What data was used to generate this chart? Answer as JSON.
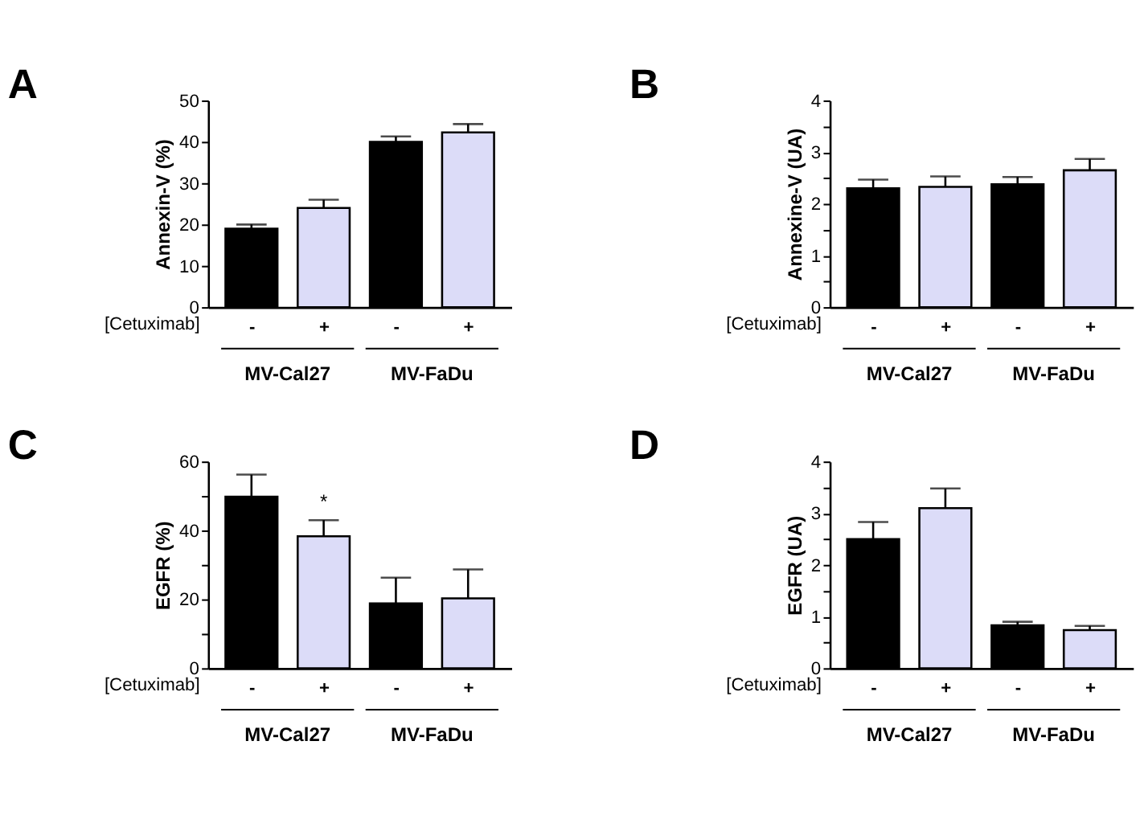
{
  "chart_data": [
    {
      "type": "bar",
      "title": "A",
      "ylabel": "Annexin-V (%)",
      "xlabel": "[Cetuximab]",
      "categories": [
        "-",
        "+",
        "-",
        "+"
      ],
      "values": [
        19,
        24,
        40,
        42.3
      ],
      "errors": [
        [
          19,
          20
        ],
        [
          24,
          26
        ],
        [
          40,
          41.3
        ],
        [
          42.3,
          44.3
        ]
      ],
      "colors": [
        "#000000",
        "#dcdcf8",
        "#000000",
        "#dcdcf8"
      ],
      "ylim": [
        0,
        50
      ],
      "yticks": [
        0,
        10,
        20,
        30,
        40,
        50
      ],
      "annotations": [
        "MV-Cal27",
        "MV-FaDu"
      ]
    },
    {
      "type": "bar",
      "title": "B",
      "ylabel": "Annexine-V (UA)",
      "xlabel": "[Cetuximab]",
      "categories": [
        "-",
        "+",
        "-",
        "+"
      ],
      "values": [
        2.3,
        2.33,
        2.38,
        2.65
      ],
      "errors": [
        [
          2.3,
          2.47
        ],
        [
          2.33,
          2.53
        ],
        [
          2.38,
          2.52
        ],
        [
          2.65,
          2.87
        ]
      ],
      "colors": [
        "#000000",
        "#d8d8f4",
        "#000000",
        "#d8d8f4"
      ],
      "ylim": [
        0,
        4
      ],
      "yticks": [
        0,
        {
          "value": 0.5,
          "label": null
        },
        1,
        {
          "value": 1.5,
          "label": null
        },
        2,
        {
          "value": 2.5,
          "label": null
        },
        3,
        {
          "value": 3.5,
          "label": null
        },
        4
      ],
      "annotations": [
        "MV-Cal27",
        "MV-FaDu"
      ]
    },
    {
      "type": "bar",
      "title": "C",
      "ylabel": "EGFR (%)",
      "xlabel": "[Cetuximab]",
      "categories": [
        "-",
        "+",
        "-",
        "+"
      ],
      "values": [
        49.8,
        38.3,
        18.8,
        20.3
      ],
      "errors": [
        [
          49.8,
          56.2
        ],
        [
          38.3,
          43
        ],
        [
          18.8,
          26.3
        ],
        [
          20.3,
          28.7
        ]
      ],
      "colors": [
        "#000000",
        "#ccd3ee",
        "#000000",
        "#ccd3ee"
      ],
      "ylim": [
        0,
        60
      ],
      "yticks": [
        0,
        {
          "value": 10,
          "label": null
        },
        20,
        {
          "value": 30,
          "label": null
        },
        40,
        {
          "value": 50,
          "label": null
        },
        60
      ],
      "value_labels": [
        null,
        "*",
        null,
        null
      ],
      "annotations": [
        "MV-Cal27",
        "MV-FaDu"
      ]
    },
    {
      "type": "bar",
      "title": "D",
      "ylabel": "EGFR (UA)",
      "xlabel": "[Cetuximab]",
      "categories": [
        "-",
        "+",
        "-",
        "+"
      ],
      "values": [
        2.5,
        3.1,
        0.83,
        0.74
      ],
      "errors": [
        [
          2.5,
          2.83
        ],
        [
          3.1,
          3.48
        ],
        [
          0.83,
          0.9
        ],
        [
          0.74,
          0.82
        ]
      ],
      "colors": [
        "#000000",
        "#d8d8f4",
        "#000000",
        "#d8d8f4"
      ],
      "ylim": [
        0,
        4
      ],
      "yticks": [
        0,
        {
          "value": 0.5,
          "label": null
        },
        1,
        {
          "value": 1.5,
          "label": null
        },
        2,
        {
          "value": 2.5,
          "label": null
        },
        3,
        {
          "value": 3.5,
          "label": null
        },
        4
      ],
      "annotations": [
        "MV-Cal27",
        "MV-FaDu"
      ]
    }
  ]
}
